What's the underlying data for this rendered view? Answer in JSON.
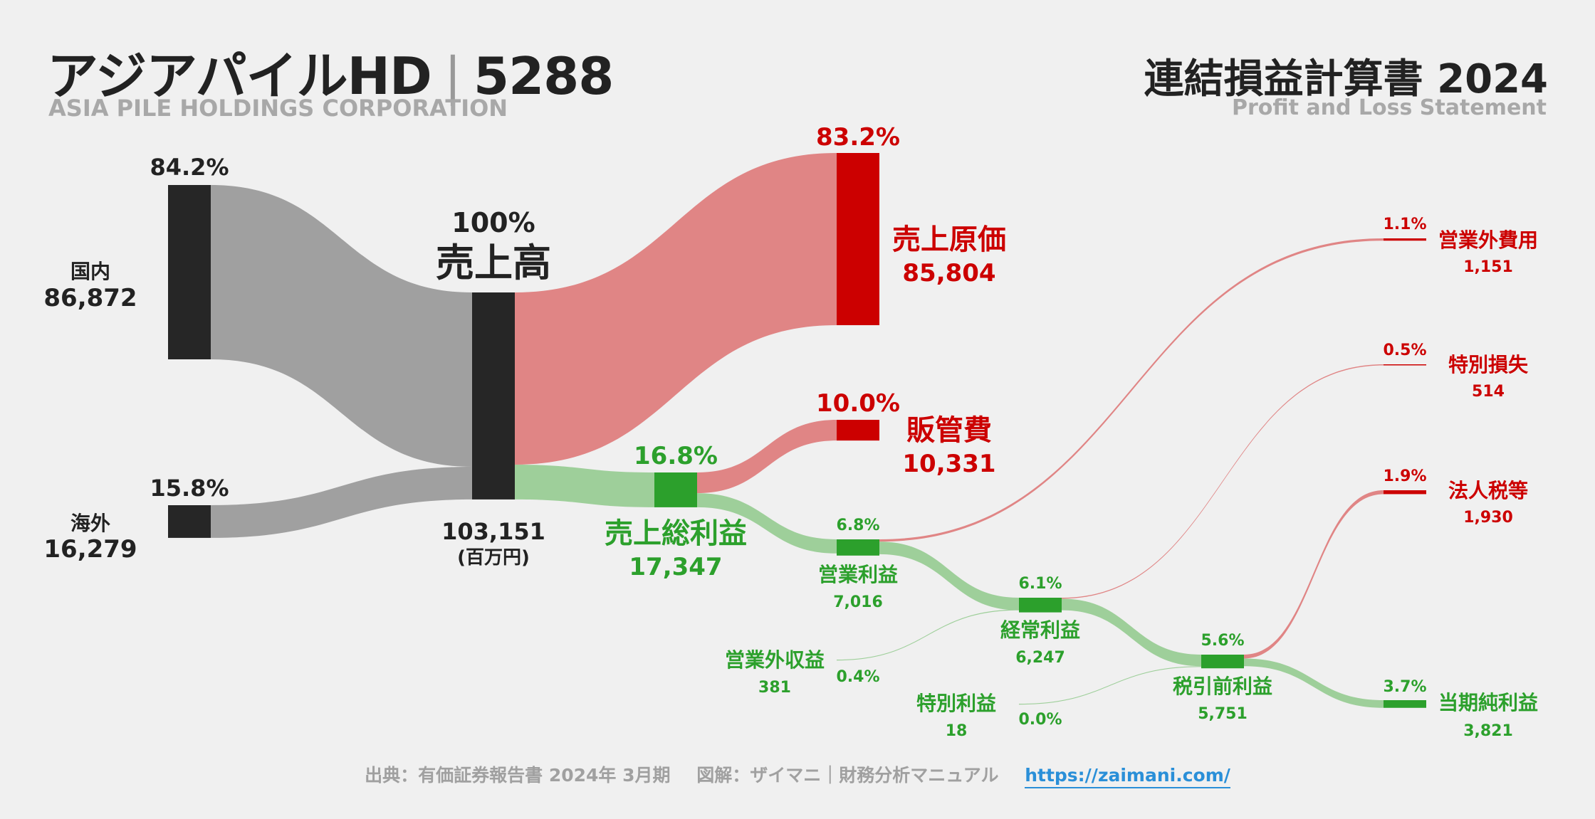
{
  "header": {
    "company": "アジアパイルHD",
    "separator": "|",
    "code": "5288",
    "company_en": "ASIA PILE HOLDINGS CORPORATION",
    "statement_title": "連結損益計算書 2024",
    "statement_en": "Profit and Loss Statement"
  },
  "footer": {
    "source": "出典：有価証券報告書 2024年 3月期",
    "credit": "図解：ザイマニ｜財務分析マニュアル",
    "url": "https://zaimani.com/"
  },
  "colors": {
    "background": "#f0f0f0",
    "revenue_node": "#262626",
    "revenue_flow": "#a0a0a0",
    "cost": "#cc0000",
    "cost_flow": "#e08585",
    "profit": "#2ca02c",
    "profit_flow": "#9ecf9a",
    "text_dark": "#222222"
  },
  "chart_data": {
    "type": "sankey",
    "unit": "(百万円)",
    "nodes": [
      {
        "id": "domestic",
        "name": "国内",
        "value": "86,872",
        "pct": "84.2%",
        "group": "revenue"
      },
      {
        "id": "overseas",
        "name": "海外",
        "value": "16,279",
        "pct": "15.8%",
        "group": "revenue"
      },
      {
        "id": "revenue",
        "name": "売上高",
        "value": "103,151",
        "pct": "100%",
        "group": "revenue"
      },
      {
        "id": "cogs",
        "name": "売上原価",
        "value": "85,804",
        "pct": "83.2%",
        "group": "cost"
      },
      {
        "id": "gross",
        "name": "売上総利益",
        "value": "17,347",
        "pct": "16.8%",
        "group": "profit"
      },
      {
        "id": "sga",
        "name": "販管費",
        "value": "10,331",
        "pct": "10.0%",
        "group": "cost"
      },
      {
        "id": "op",
        "name": "営業利益",
        "value": "7,016",
        "pct": "6.8%",
        "group": "profit"
      },
      {
        "id": "nonop_inc",
        "name": "営業外収益",
        "value": "381",
        "pct": "0.4%",
        "group": "profit"
      },
      {
        "id": "nonop_exp",
        "name": "営業外費用",
        "value": "1,151",
        "pct": "1.1%",
        "group": "cost"
      },
      {
        "id": "ordinary",
        "name": "経常利益",
        "value": "6,247",
        "pct": "6.1%",
        "group": "profit"
      },
      {
        "id": "ext_gain",
        "name": "特別利益",
        "value": "18",
        "pct": "0.0%",
        "group": "profit"
      },
      {
        "id": "ext_loss",
        "name": "特別損失",
        "value": "514",
        "pct": "0.5%",
        "group": "cost"
      },
      {
        "id": "pretax",
        "name": "税引前利益",
        "value": "5,751",
        "pct": "5.6%",
        "group": "profit"
      },
      {
        "id": "tax",
        "name": "法人税等",
        "value": "1,930",
        "pct": "1.9%",
        "group": "cost"
      },
      {
        "id": "net",
        "name": "当期純利益",
        "value": "3,821",
        "pct": "3.7%",
        "group": "profit"
      }
    ],
    "links": [
      {
        "source": "domestic",
        "target": "revenue",
        "value": 86872
      },
      {
        "source": "overseas",
        "target": "revenue",
        "value": 16279
      },
      {
        "source": "revenue",
        "target": "cogs",
        "value": 85804
      },
      {
        "source": "revenue",
        "target": "gross",
        "value": 17347
      },
      {
        "source": "gross",
        "target": "sga",
        "value": 10331
      },
      {
        "source": "gross",
        "target": "op",
        "value": 7016
      },
      {
        "source": "op",
        "target": "nonop_exp",
        "value": 1151
      },
      {
        "source": "op",
        "target": "ordinary",
        "value": 6247
      },
      {
        "source": "nonop_inc",
        "target": "ordinary",
        "value": 381
      },
      {
        "source": "ordinary",
        "target": "ext_loss",
        "value": 514
      },
      {
        "source": "ordinary",
        "target": "pretax",
        "value": 5751
      },
      {
        "source": "ext_gain",
        "target": "pretax",
        "value": 18
      },
      {
        "source": "pretax",
        "target": "tax",
        "value": 1930
      },
      {
        "source": "pretax",
        "target": "net",
        "value": 3821
      }
    ]
  }
}
